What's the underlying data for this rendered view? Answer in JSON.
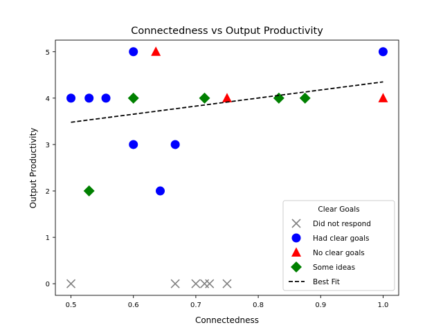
{
  "chart_data": {
    "type": "scatter",
    "title": "Connectedness vs Output Productivity",
    "xlabel": "Connectedness",
    "ylabel": "Output Productivity",
    "xlim": [
      0.475,
      1.025
    ],
    "ylim": [
      -0.25,
      5.25
    ],
    "xticks": [
      "0.5",
      "0.6",
      "0.7",
      "0.8",
      "0.9",
      "1.0"
    ],
    "xtick_values": [
      0.5,
      0.6,
      0.7,
      0.8,
      0.9,
      1.0
    ],
    "yticks": [
      "0",
      "1",
      "2",
      "3",
      "4",
      "5"
    ],
    "ytick_values": [
      0,
      1,
      2,
      3,
      4,
      5
    ],
    "grid": false,
    "legend": {
      "title": "Clear Goals",
      "placement": "lower-right",
      "entries": [
        "Did not respond",
        "Had clear goals",
        "No clear goals",
        "Some ideas",
        "Best Fit"
      ]
    },
    "series": [
      {
        "name": "Did not respond",
        "marker": "x",
        "color": "#808080",
        "points": [
          [
            0.5,
            0
          ],
          [
            0.667,
            0
          ],
          [
            0.7,
            0
          ],
          [
            0.714,
            0
          ],
          [
            0.722,
            0
          ],
          [
            0.75,
            0
          ]
        ]
      },
      {
        "name": "Had clear goals",
        "marker": "circle",
        "color": "#0000ff",
        "points": [
          [
            0.5,
            4
          ],
          [
            0.529,
            4
          ],
          [
            0.556,
            4
          ],
          [
            0.6,
            5
          ],
          [
            0.6,
            3
          ],
          [
            0.643,
            2
          ],
          [
            0.667,
            3
          ],
          [
            1.0,
            5
          ]
        ]
      },
      {
        "name": "No clear goals",
        "marker": "triangle",
        "color": "#ff0000",
        "points": [
          [
            0.636,
            5
          ],
          [
            0.75,
            4
          ],
          [
            1.0,
            4
          ]
        ]
      },
      {
        "name": "Some ideas",
        "marker": "diamond",
        "color": "#008000",
        "points": [
          [
            0.529,
            2
          ],
          [
            0.6,
            4
          ],
          [
            0.714,
            4
          ],
          [
            0.833,
            4
          ],
          [
            0.875,
            4
          ]
        ]
      }
    ],
    "best_fit": {
      "name": "Best Fit",
      "style": "dashed",
      "color": "#000000",
      "points": [
        [
          0.5,
          3.48
        ],
        [
          1.0,
          4.35
        ]
      ]
    }
  }
}
